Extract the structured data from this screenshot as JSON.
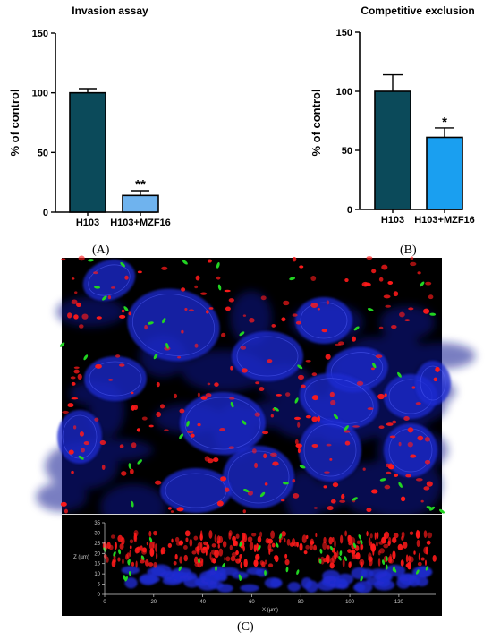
{
  "panel_labels": {
    "a": "(A)",
    "b": "(B)",
    "c": "(C)"
  },
  "chart_data": [
    {
      "type": "bar",
      "title": "Invasion assay",
      "ylabel": "% of control",
      "xlabel": "",
      "ylim": [
        0,
        150
      ],
      "yticks": [
        "0",
        "50",
        "100",
        "150"
      ],
      "categories": [
        "H103",
        "H103+MZF16"
      ],
      "values": [
        100,
        14
      ],
      "errors": [
        3.5,
        4
      ],
      "significance": [
        "",
        "**"
      ],
      "colors": [
        "#0b4a5a",
        "#6fb3ee"
      ]
    },
    {
      "type": "bar",
      "title": "Competitive exclusion",
      "ylabel": "% of control",
      "xlabel": "",
      "ylim": [
        0,
        150
      ],
      "yticks": [
        "0",
        "50",
        "100",
        "150"
      ],
      "categories": [
        "H103",
        "H103+MZF16"
      ],
      "values": [
        100,
        61
      ],
      "errors": [
        14,
        8
      ],
      "significance": [
        "",
        "*"
      ],
      "colors": [
        "#0b4a5a",
        "#1a9ff0"
      ]
    }
  ],
  "micrograph": {
    "side_view": {
      "z_axis_label": "Z (µm)",
      "x_axis_label": "X (µm)",
      "z_ticks": [
        "0",
        "5",
        "10",
        "15",
        "20",
        "25",
        "30",
        "35"
      ],
      "x_ticks": [
        "0",
        "20",
        "40",
        "60",
        "80",
        "100",
        "120"
      ]
    },
    "channel_colors": {
      "nuclei": "#1f2bd0",
      "bacteria_red": "#ff1a1a",
      "bacteria_green": "#22d422"
    }
  }
}
